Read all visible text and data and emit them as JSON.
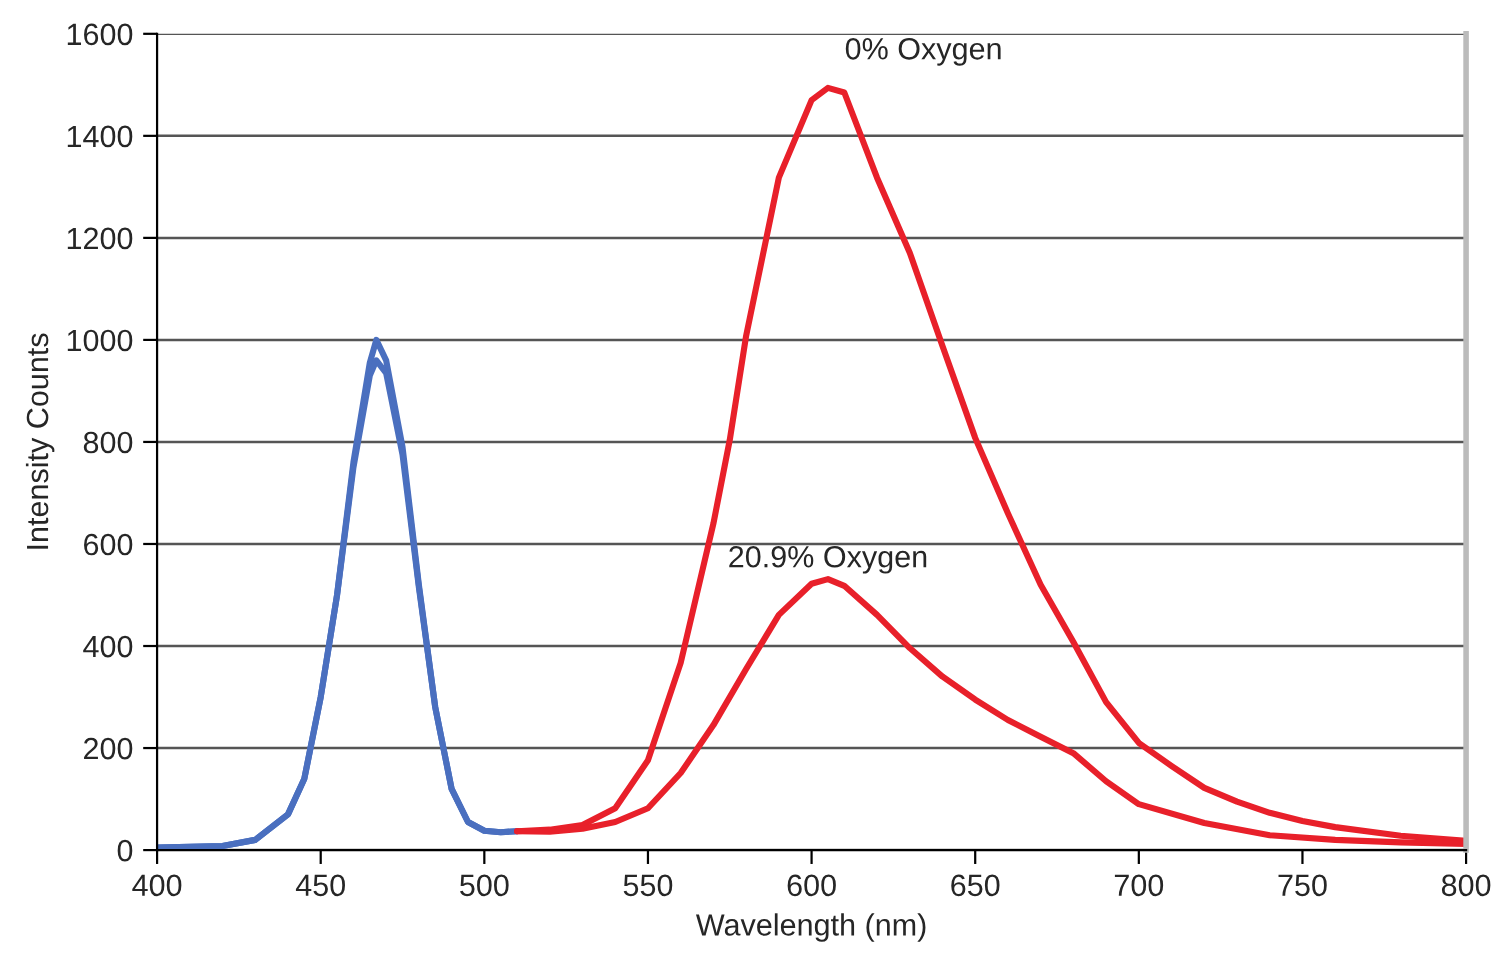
{
  "chart_data": {
    "type": "line",
    "xlabel": "Wavelength (nm)",
    "ylabel": "Intensity Counts",
    "xlim": [
      400,
      800
    ],
    "xticks": [
      400,
      450,
      500,
      550,
      600,
      650,
      700,
      750,
      800
    ],
    "ylim": [
      0,
      1600
    ],
    "yticks": [
      0,
      200,
      400,
      600,
      800,
      1000,
      1200,
      1400,
      1600
    ],
    "grid": "y",
    "marker": "none",
    "line_style": "solid",
    "series": [
      {
        "color": "#4a6fbf",
        "x": [
          400,
          420,
          430,
          440,
          445,
          450,
          455,
          460,
          465,
          467,
          470,
          475,
          480,
          485,
          490,
          495,
          500,
          505,
          510
        ],
        "values": [
          5,
          8,
          20,
          70,
          140,
          300,
          500,
          760,
          955,
          1000,
          960,
          790,
          520,
          280,
          120,
          55,
          38,
          35,
          37
        ]
      },
      {
        "color": "#4a6fbf",
        "x": [
          400,
          420,
          430,
          440,
          445,
          450,
          455,
          460,
          465,
          467,
          470,
          475,
          480,
          485,
          490,
          495,
          500,
          505,
          510
        ],
        "values": [
          5,
          8,
          20,
          70,
          140,
          300,
          500,
          750,
          930,
          960,
          935,
          775,
          515,
          280,
          120,
          55,
          38,
          35,
          37
        ]
      },
      {
        "name": "0% Oxygen",
        "color": "#e8202a",
        "x": [
          510,
          520,
          530,
          540,
          550,
          560,
          570,
          575,
          580,
          590,
          600,
          605,
          610,
          620,
          630,
          640,
          650,
          660,
          670,
          680,
          690,
          700,
          710,
          720,
          730,
          740,
          750,
          760,
          780,
          800
        ],
        "values": [
          37,
          40,
          49,
          82,
          176,
          367,
          640,
          804,
          1008,
          1318,
          1470,
          1494,
          1485,
          1318,
          1171,
          988,
          808,
          660,
          520,
          408,
          290,
          210,
          165,
          122,
          95,
          73,
          57,
          45,
          28,
          18
        ]
      },
      {
        "name": "20.9% Oxygen",
        "color": "#e8202a",
        "x": [
          510,
          520,
          530,
          540,
          550,
          560,
          570,
          580,
          590,
          600,
          605,
          610,
          620,
          630,
          640,
          650,
          660,
          670,
          680,
          690,
          700,
          720,
          740,
          760,
          780,
          800
        ],
        "values": [
          37,
          36,
          42,
          55,
          82,
          151,
          245,
          355,
          461,
          522,
          531,
          518,
          461,
          396,
          340,
          295,
          255,
          222,
          190,
          135,
          90,
          53,
          29,
          20,
          15,
          12
        ]
      }
    ]
  }
}
